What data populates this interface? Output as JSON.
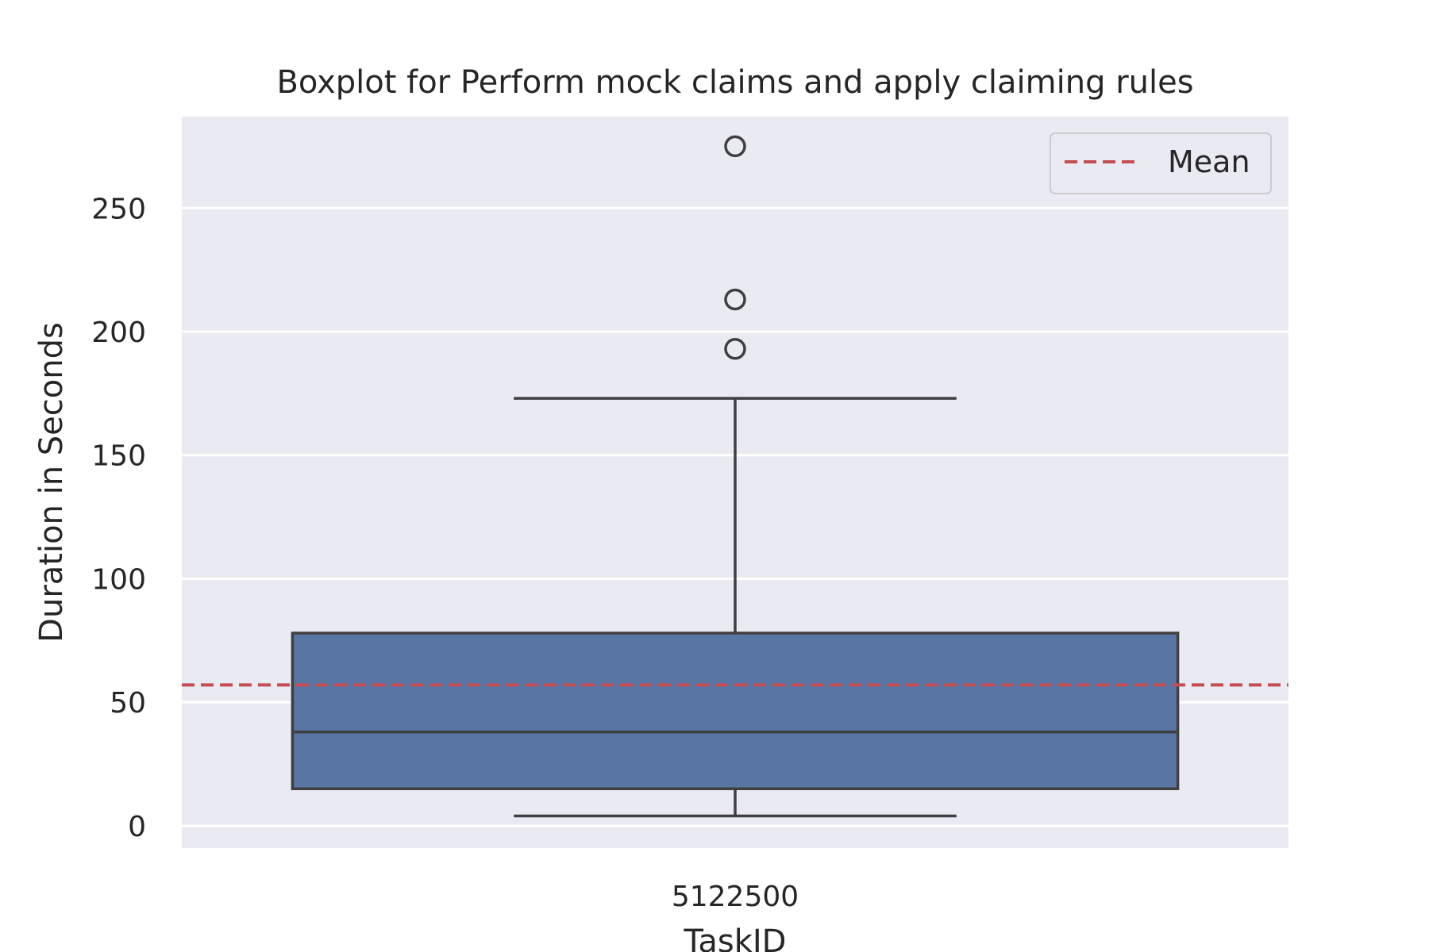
{
  "chart_data": {
    "type": "box",
    "title": "Boxplot for Perform mock claims and apply claiming rules",
    "xlabel": "TaskID",
    "ylabel": "Duration in Seconds",
    "ylim": [
      -9,
      287
    ],
    "yticks": [
      0,
      50,
      100,
      150,
      200,
      250
    ],
    "categories": [
      "5122500"
    ],
    "boxes": [
      {
        "category": "5122500",
        "whisker_low": 4,
        "q1": 15,
        "median": 38,
        "q3": 78,
        "whisker_high": 173,
        "outliers": [
          193,
          213,
          275
        ]
      }
    ],
    "mean": 57,
    "legend": {
      "entries": [
        "Mean"
      ],
      "placement": "top-right"
    },
    "grid": true,
    "colors": {
      "background": "#EAEAF2",
      "grid": "#FFFFFF",
      "box_fill": "#5975A4",
      "box_edge": "#3F3F3F",
      "mean_line": "#C44E52",
      "text": "#262626"
    }
  }
}
